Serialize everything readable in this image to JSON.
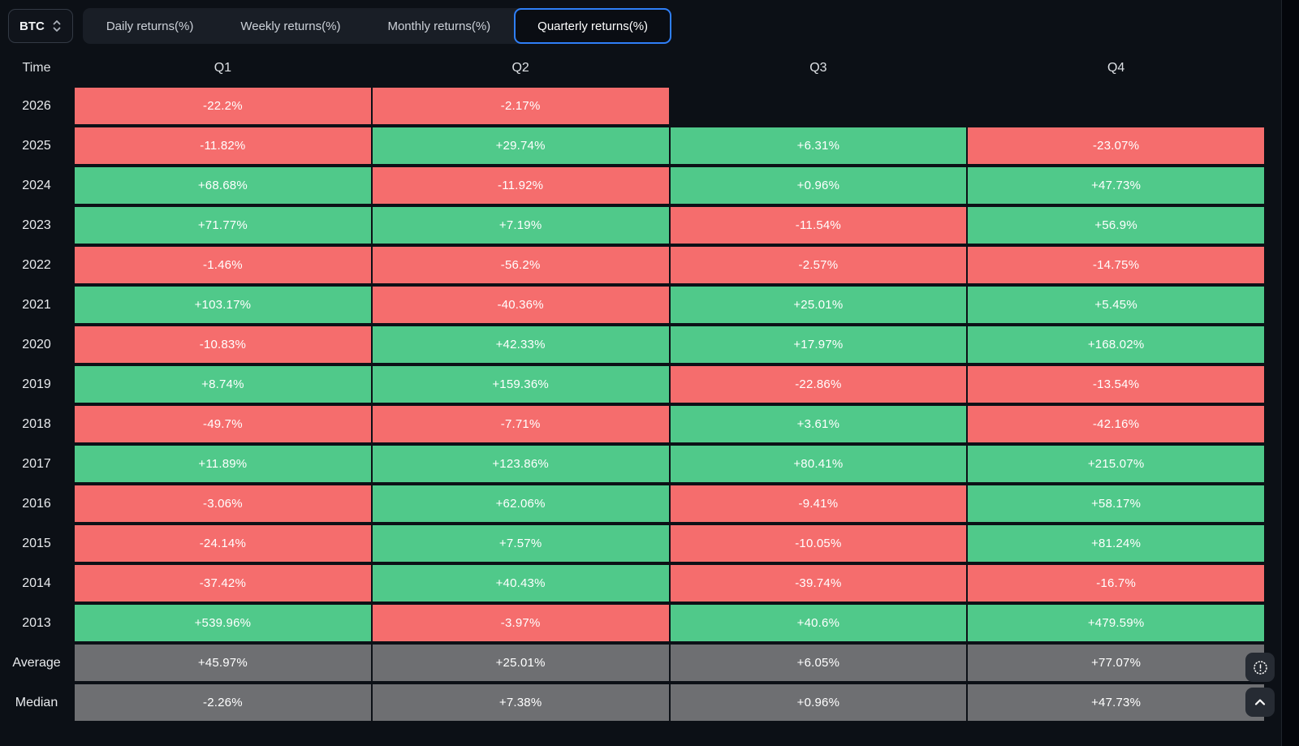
{
  "symbol_selector": {
    "value": "BTC",
    "icon": "select-updown-icon"
  },
  "tabs": [
    {
      "label": "Daily returns(%)",
      "active": false
    },
    {
      "label": "Weekly returns(%)",
      "active": false
    },
    {
      "label": "Monthly returns(%)",
      "active": false
    },
    {
      "label": "Quarterly returns(%)",
      "active": true
    }
  ],
  "table": {
    "headers": [
      "Time",
      "Q1",
      "Q2",
      "Q3",
      "Q4"
    ],
    "rows": [
      {
        "label": "2026",
        "cells": [
          {
            "text": "-22.2%",
            "type": "neg"
          },
          {
            "text": "-2.17%",
            "type": "neg"
          },
          {
            "text": "",
            "type": "empty"
          },
          {
            "text": "",
            "type": "empty"
          }
        ]
      },
      {
        "label": "2025",
        "cells": [
          {
            "text": "-11.82%",
            "type": "neg"
          },
          {
            "text": "+29.74%",
            "type": "pos"
          },
          {
            "text": "+6.31%",
            "type": "pos"
          },
          {
            "text": "-23.07%",
            "type": "neg"
          }
        ]
      },
      {
        "label": "2024",
        "cells": [
          {
            "text": "+68.68%",
            "type": "pos"
          },
          {
            "text": "-11.92%",
            "type": "neg"
          },
          {
            "text": "+0.96%",
            "type": "pos"
          },
          {
            "text": "+47.73%",
            "type": "pos"
          }
        ]
      },
      {
        "label": "2023",
        "cells": [
          {
            "text": "+71.77%",
            "type": "pos"
          },
          {
            "text": "+7.19%",
            "type": "pos"
          },
          {
            "text": "-11.54%",
            "type": "neg"
          },
          {
            "text": "+56.9%",
            "type": "pos"
          }
        ]
      },
      {
        "label": "2022",
        "cells": [
          {
            "text": "-1.46%",
            "type": "neg"
          },
          {
            "text": "-56.2%",
            "type": "neg"
          },
          {
            "text": "-2.57%",
            "type": "neg"
          },
          {
            "text": "-14.75%",
            "type": "neg"
          }
        ]
      },
      {
        "label": "2021",
        "cells": [
          {
            "text": "+103.17%",
            "type": "pos"
          },
          {
            "text": "-40.36%",
            "type": "neg"
          },
          {
            "text": "+25.01%",
            "type": "pos"
          },
          {
            "text": "+5.45%",
            "type": "pos"
          }
        ]
      },
      {
        "label": "2020",
        "cells": [
          {
            "text": "-10.83%",
            "type": "neg"
          },
          {
            "text": "+42.33%",
            "type": "pos"
          },
          {
            "text": "+17.97%",
            "type": "pos"
          },
          {
            "text": "+168.02%",
            "type": "pos"
          }
        ]
      },
      {
        "label": "2019",
        "cells": [
          {
            "text": "+8.74%",
            "type": "pos"
          },
          {
            "text": "+159.36%",
            "type": "pos"
          },
          {
            "text": "-22.86%",
            "type": "neg"
          },
          {
            "text": "-13.54%",
            "type": "neg"
          }
        ]
      },
      {
        "label": "2018",
        "cells": [
          {
            "text": "-49.7%",
            "type": "neg"
          },
          {
            "text": "-7.71%",
            "type": "neg"
          },
          {
            "text": "+3.61%",
            "type": "pos"
          },
          {
            "text": "-42.16%",
            "type": "neg"
          }
        ]
      },
      {
        "label": "2017",
        "cells": [
          {
            "text": "+11.89%",
            "type": "pos"
          },
          {
            "text": "+123.86%",
            "type": "pos"
          },
          {
            "text": "+80.41%",
            "type": "pos"
          },
          {
            "text": "+215.07%",
            "type": "pos"
          }
        ]
      },
      {
        "label": "2016",
        "cells": [
          {
            "text": "-3.06%",
            "type": "neg"
          },
          {
            "text": "+62.06%",
            "type": "pos"
          },
          {
            "text": "-9.41%",
            "type": "neg"
          },
          {
            "text": "+58.17%",
            "type": "pos"
          }
        ]
      },
      {
        "label": "2015",
        "cells": [
          {
            "text": "-24.14%",
            "type": "neg"
          },
          {
            "text": "+7.57%",
            "type": "pos"
          },
          {
            "text": "-10.05%",
            "type": "neg"
          },
          {
            "text": "+81.24%",
            "type": "pos"
          }
        ]
      },
      {
        "label": "2014",
        "cells": [
          {
            "text": "-37.42%",
            "type": "neg"
          },
          {
            "text": "+40.43%",
            "type": "pos"
          },
          {
            "text": "-39.74%",
            "type": "neg"
          },
          {
            "text": "-16.7%",
            "type": "neg"
          }
        ]
      },
      {
        "label": "2013",
        "cells": [
          {
            "text": "+539.96%",
            "type": "pos"
          },
          {
            "text": "-3.97%",
            "type": "neg"
          },
          {
            "text": "+40.6%",
            "type": "pos"
          },
          {
            "text": "+479.59%",
            "type": "pos"
          }
        ]
      },
      {
        "label": "Average",
        "cells": [
          {
            "text": "+45.97%",
            "type": "stat"
          },
          {
            "text": "+25.01%",
            "type": "stat"
          },
          {
            "text": "+6.05%",
            "type": "stat"
          },
          {
            "text": "+77.07%",
            "type": "stat"
          }
        ]
      },
      {
        "label": "Median",
        "cells": [
          {
            "text": "-2.26%",
            "type": "stat"
          },
          {
            "text": "+7.38%",
            "type": "stat"
          },
          {
            "text": "+0.96%",
            "type": "stat"
          },
          {
            "text": "+47.73%",
            "type": "stat"
          }
        ]
      }
    ]
  },
  "floating_buttons": {
    "report": {
      "icon": "badge-exclamation-icon"
    },
    "scroll_top": {
      "icon": "chevron-up-icon"
    }
  },
  "colors": {
    "positive": "#50c98a",
    "negative": "#f56d6d",
    "neutral": "#6e6f72",
    "accent_blue": "#2f7ff7",
    "background": "#0c1016"
  }
}
